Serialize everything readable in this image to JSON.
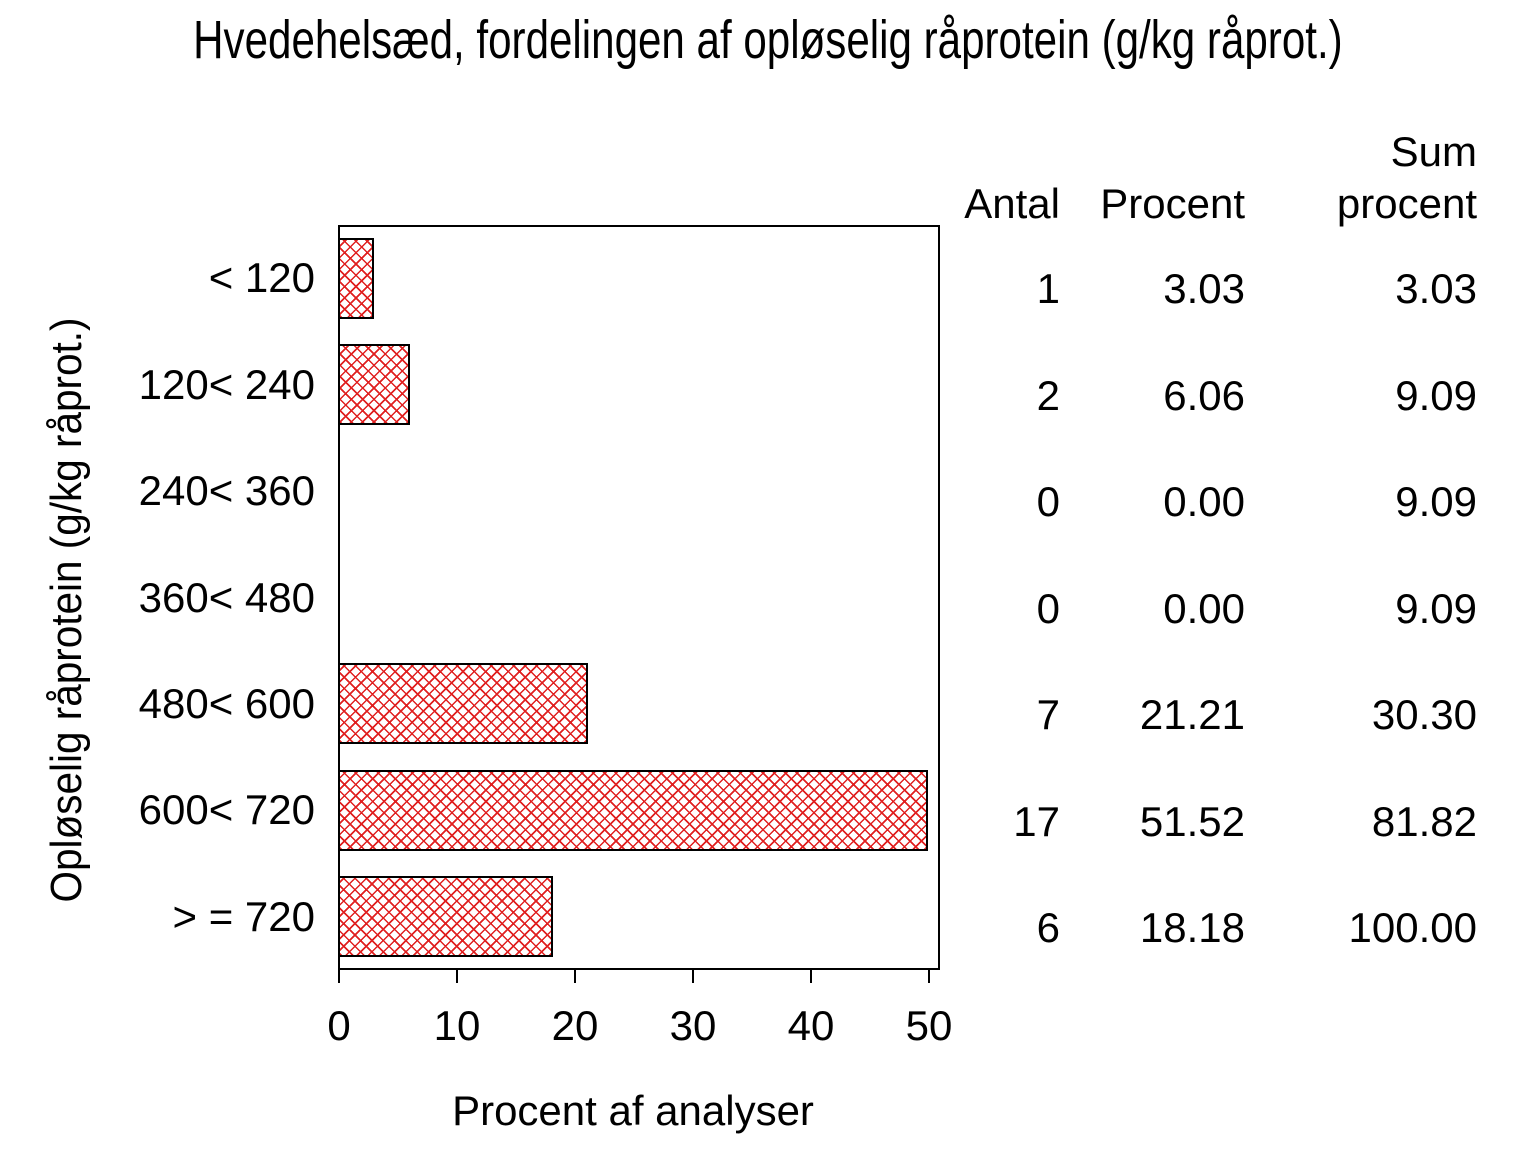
{
  "title": "Hvedehelsæd, fordelingen af opløselig råprotein (g/kg råprot.)",
  "chart_data": {
    "type": "bar",
    "orientation": "horizontal",
    "title": "Hvedehelsæd, fordelingen af opløselig råprotein (g/kg råprot.)",
    "xlabel": "Procent af analyser",
    "ylabel": "Opløselig råprotein (g/kg råprot.)",
    "categories": [
      "< 120",
      "120< 240",
      "240< 360",
      "360< 480",
      "480< 600",
      "600< 720",
      "> = 720"
    ],
    "values": [
      3.03,
      6.06,
      0.0,
      0.0,
      21.21,
      51.52,
      18.18
    ],
    "xlim": [
      0,
      50
    ],
    "xticks": [
      0,
      10,
      20,
      30,
      40,
      50
    ],
    "grid": false,
    "legend": "none",
    "bar_fill": "red-crosshatch",
    "bar_color": "#e02020",
    "bar_border_color": "#000000"
  },
  "table": {
    "headers": {
      "antal": "Antal",
      "procent": "Procent",
      "sum_line1": "Sum",
      "sum_line2": "procent"
    },
    "rows": [
      {
        "antal": "1",
        "procent": "3.03",
        "sum": "3.03"
      },
      {
        "antal": "2",
        "procent": "6.06",
        "sum": "9.09"
      },
      {
        "antal": "0",
        "procent": "0.00",
        "sum": "9.09"
      },
      {
        "antal": "0",
        "procent": "0.00",
        "sum": "9.09"
      },
      {
        "antal": "7",
        "procent": "21.21",
        "sum": "30.30"
      },
      {
        "antal": "17",
        "procent": "51.52",
        "sum": "81.82"
      },
      {
        "antal": "6",
        "procent": "18.18",
        "sum": "100.00"
      }
    ]
  }
}
